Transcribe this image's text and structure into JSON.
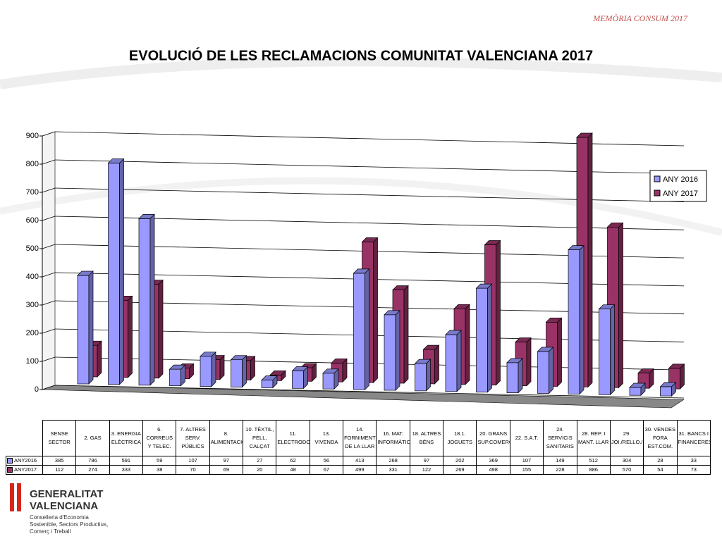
{
  "header": "MEMÒRIA CONSUM 2017",
  "chart_data": {
    "type": "bar3d",
    "title": "EVOLUCIÓ DE LES RECLAMACIONS COMUNITAT VALENCIANA 2017",
    "categories": [
      "SENSE SECTOR",
      "2. GAS",
      "3. ENERGIA ELÈCTRICA",
      "6. CORREUS Y TELEC.",
      "7. ALTRES SERV. PÚBLICS",
      "8. ALIMENTACIÓ",
      "10. TÈXTIL, PELL, CALÇAT",
      "11. ELECTRODOMÈSTICS",
      "13. VIVENDA",
      "14. FORNIMENT DE LA LLAR",
      "16. MAT. INFORMÀTIC",
      "18. ALTRES BÉNS",
      "18.1. JOGUETS",
      "20. GRANS SUP.COMERCIALS",
      "22. S.A.T.",
      "24. SERVICIS SANITARIS",
      "28. REP. I MANT. LLAR",
      "29. JOI./RELLO./E.FOTOGR.",
      "30. VENDES FORA EST.COM.",
      "31. BANCS I FINANCERES"
    ],
    "series": [
      {
        "name": "ANY 2016",
        "color": "#9999ff",
        "values": [
          385,
          786,
          591,
          59,
          107,
          97,
          27,
          62,
          56,
          413,
          268,
          97,
          202,
          369,
          107,
          149,
          512,
          304,
          28,
          33
        ]
      },
      {
        "name": "ANY 2017",
        "color": "#993366",
        "values": [
          112,
          274,
          333,
          38,
          70,
          69,
          20,
          48,
          67,
          499,
          331,
          122,
          269,
          498,
          155,
          228,
          886,
          570,
          54,
          73
        ]
      }
    ],
    "ylim": [
      0,
      900
    ],
    "yticks": [
      0,
      100,
      200,
      300,
      400,
      500,
      600,
      700,
      800,
      900
    ],
    "grid": true,
    "legend": "right",
    "table_row_labels": [
      "ANY2016",
      "ANY2017"
    ]
  },
  "logo": {
    "name1": "GENERALITAT",
    "name2": "VALENCIANA",
    "dept1": "Conselleria d'Economia",
    "dept2": "Sostenible, Sectors Productius,",
    "dept3": "Comerç i Treball"
  }
}
